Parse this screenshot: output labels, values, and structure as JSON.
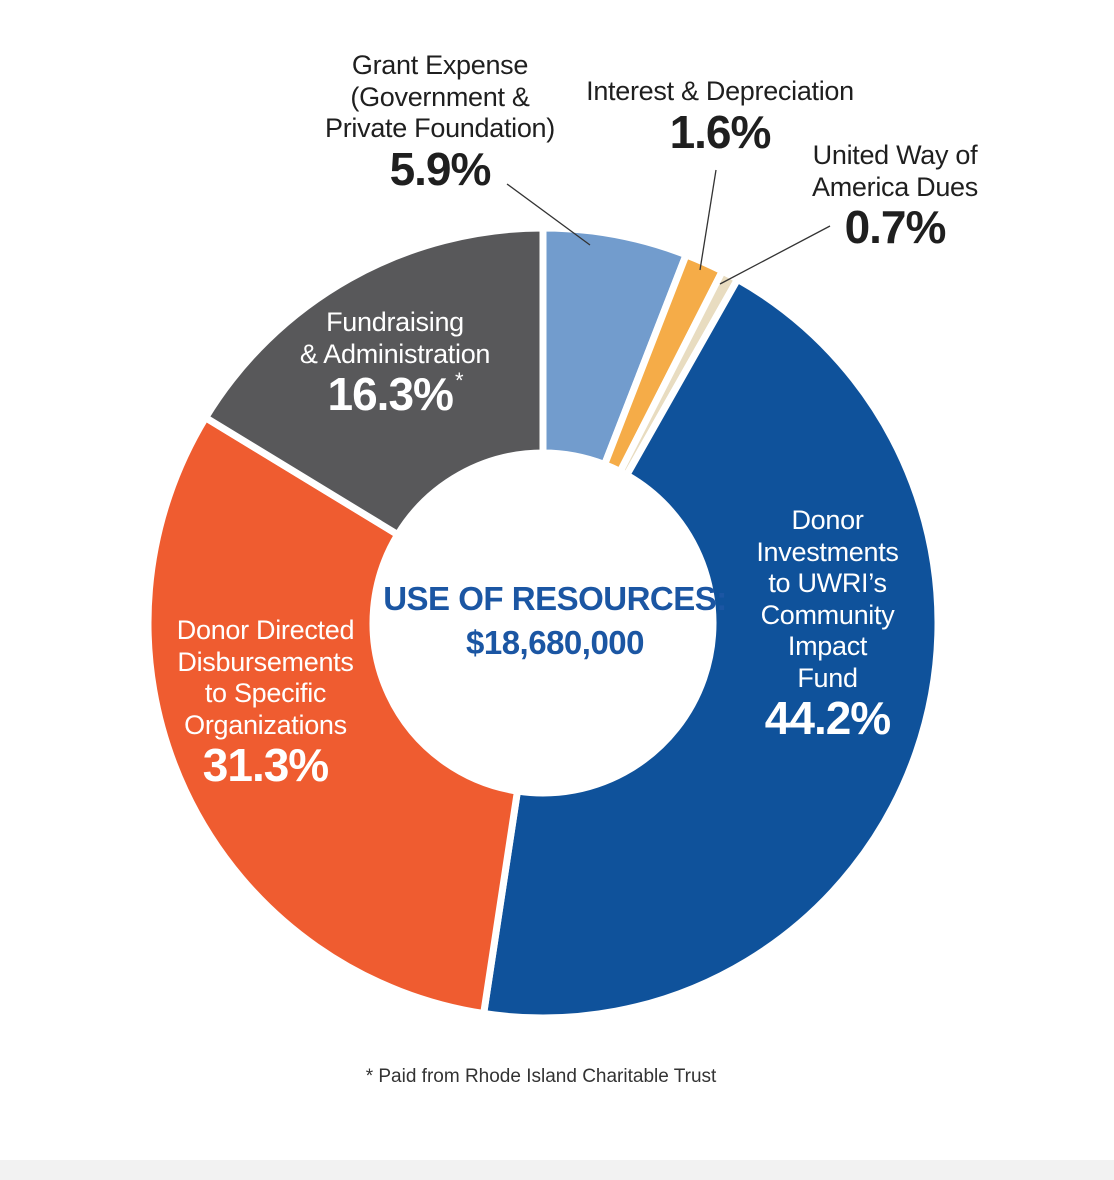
{
  "chart_data": {
    "type": "pie",
    "style": "donut",
    "slices": [
      {
        "label": "Grant Expense (Government & Private Foundation)",
        "value": 5.9,
        "display": "5.9%",
        "color": "#729ccd"
      },
      {
        "label": "Interest & Depreciation",
        "value": 1.6,
        "display": "1.6%",
        "color": "#f5ac48"
      },
      {
        "label": "United Way of America Dues",
        "value": 0.7,
        "display": "0.7%",
        "color": "#e8dcc0"
      },
      {
        "label": "Donor Investments to UWRI’s Community Impact Fund",
        "value": 44.2,
        "display": "44.2%",
        "color": "#0f529b"
      },
      {
        "label": "Donor Directed Disbursements to Specific Organizations",
        "value": 31.3,
        "display": "31.3%",
        "color": "#ef5c30"
      },
      {
        "label": "Fundraising & Administration",
        "value": 16.3,
        "display": "16.3%",
        "color": "#58585a"
      }
    ],
    "center": {
      "title": "USE OF RESOURCES:",
      "total": "$18,680,000"
    },
    "footnote": "* Paid from Rhode Island Charitable Trust"
  },
  "labels": {
    "grant": {
      "name": "Grant Expense\n(Government &\nPrivate Foundation)",
      "pct": "5.9%"
    },
    "interest": {
      "name": "Interest & Depreciation",
      "pct": "1.6%"
    },
    "united_way": {
      "name": "United Way of\nAmerica Dues",
      "pct": "0.7%"
    },
    "fundraising": {
      "name": "Fundraising\n& Administration",
      "pct": "16.3%",
      "mark": "*"
    },
    "donor_investments": {
      "name": "Donor\nInvestments\nto UWRI’s\nCommunity\nImpact\nFund",
      "pct": "44.2%"
    },
    "donor_directed": {
      "name": "Donor Directed\nDisbursements\nto Specific\nOrganizations",
      "pct": "31.3%"
    }
  }
}
